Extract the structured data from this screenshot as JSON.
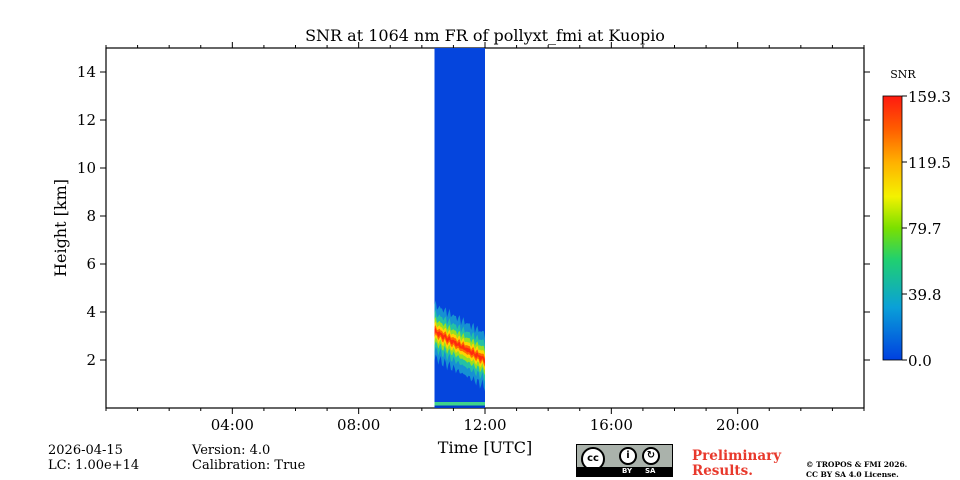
{
  "chart_data": {
    "type": "heatmap",
    "title": "SNR at 1064 nm FR of pollyxt_fmi at Kuopio",
    "xlabel": "Time [UTC]",
    "ylabel": "Height [km]",
    "xlim_hours": [
      0,
      24
    ],
    "ylim_km": [
      0,
      15
    ],
    "x_ticks": [
      {
        "hour": 4,
        "label": "04:00"
      },
      {
        "hour": 8,
        "label": "08:00"
      },
      {
        "hour": 12,
        "label": "12:00"
      },
      {
        "hour": 16,
        "label": "16:00"
      },
      {
        "hour": 20,
        "label": "20:00"
      }
    ],
    "y_ticks": [
      2,
      4,
      6,
      8,
      10,
      12,
      14
    ],
    "data_window_hours": [
      10.4,
      12.0
    ],
    "layer": {
      "start_hour": 10.4,
      "end_hour": 12.0,
      "center_height_start_km": 3.2,
      "center_height_end_km": 2.0,
      "peak_snr": 159.3
    },
    "background_snr": 0.0,
    "colorbar": {
      "label": "SNR",
      "min": 0.0,
      "max": 159.3,
      "ticks": [
        "159.3",
        "119.5",
        "79.7",
        "39.8",
        "0.0"
      ]
    }
  },
  "meta": {
    "date": "2026-04-15",
    "lc": "LC: 1.00e+14",
    "version": "Version: 4.0",
    "calibration": "Calibration: True"
  },
  "license": {
    "cc_text": "cc",
    "by_label": "BY",
    "sa_label": "SA",
    "preliminary_line1": "Preliminary",
    "preliminary_line2": "Results.",
    "copyright_line1": "© TROPOS & FMI 2026.",
    "copyright_line2": "CC BY SA 4.0 License."
  }
}
